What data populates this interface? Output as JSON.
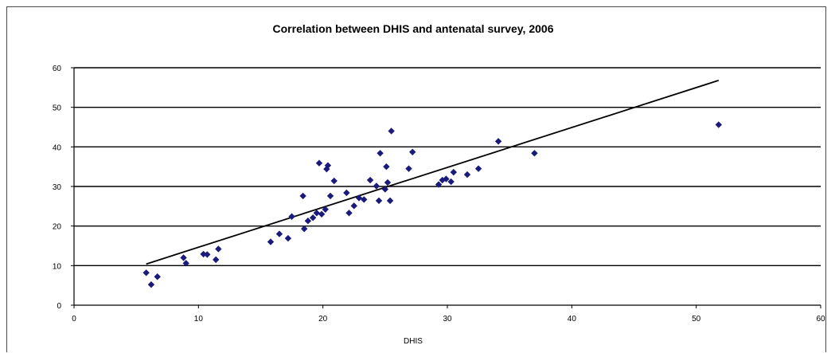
{
  "chart_data": {
    "type": "scatter",
    "title": "Correlation between DHIS and antenatal survey, 2006",
    "xlabel": "DHIS",
    "ylabel": "",
    "xlim": [
      0,
      60
    ],
    "ylim": [
      0,
      60
    ],
    "x_ticks": [
      "0",
      "10",
      "20",
      "30",
      "40",
      "50",
      "60"
    ],
    "y_ticks": [
      "0",
      "10",
      "20",
      "30",
      "40",
      "50",
      "60"
    ],
    "grid": "horizontal",
    "legend": "none",
    "marker_color": "#1a1a7a",
    "trendline": {
      "x": [
        5.8,
        51.8
      ],
      "y": [
        10.4,
        56.8
      ]
    },
    "series": [
      {
        "name": "",
        "x": [
          5.8,
          6.2,
          6.7,
          8.8,
          9.0,
          10.4,
          10.7,
          11.4,
          11.6,
          15.8,
          16.5,
          17.2,
          17.5,
          18.4,
          18.5,
          18.8,
          19.2,
          19.5,
          19.7,
          19.9,
          20.2,
          20.3,
          20.4,
          20.6,
          20.9,
          21.9,
          22.1,
          22.5,
          22.9,
          23.3,
          23.8,
          24.3,
          24.5,
          24.6,
          25.0,
          25.1,
          25.2,
          25.4,
          25.5,
          26.9,
          27.2,
          29.3,
          29.6,
          29.9,
          30.3,
          30.5,
          31.6,
          32.5,
          34.1,
          37.0,
          51.8
        ],
        "y": [
          8.2,
          5.2,
          7.2,
          12.0,
          10.6,
          12.9,
          12.8,
          11.5,
          14.2,
          16.0,
          18.0,
          16.9,
          22.4,
          27.6,
          19.3,
          21.3,
          22.1,
          23.3,
          35.9,
          23.0,
          24.2,
          34.4,
          35.3,
          27.6,
          31.4,
          28.4,
          23.3,
          25.1,
          27.1,
          26.7,
          31.6,
          30.1,
          26.4,
          38.4,
          29.3,
          35.0,
          31.0,
          26.4,
          44.0,
          34.5,
          38.7,
          30.5,
          31.6,
          31.9,
          31.2,
          33.6,
          33.0,
          34.5,
          41.4,
          38.4,
          45.6
        ]
      }
    ]
  }
}
